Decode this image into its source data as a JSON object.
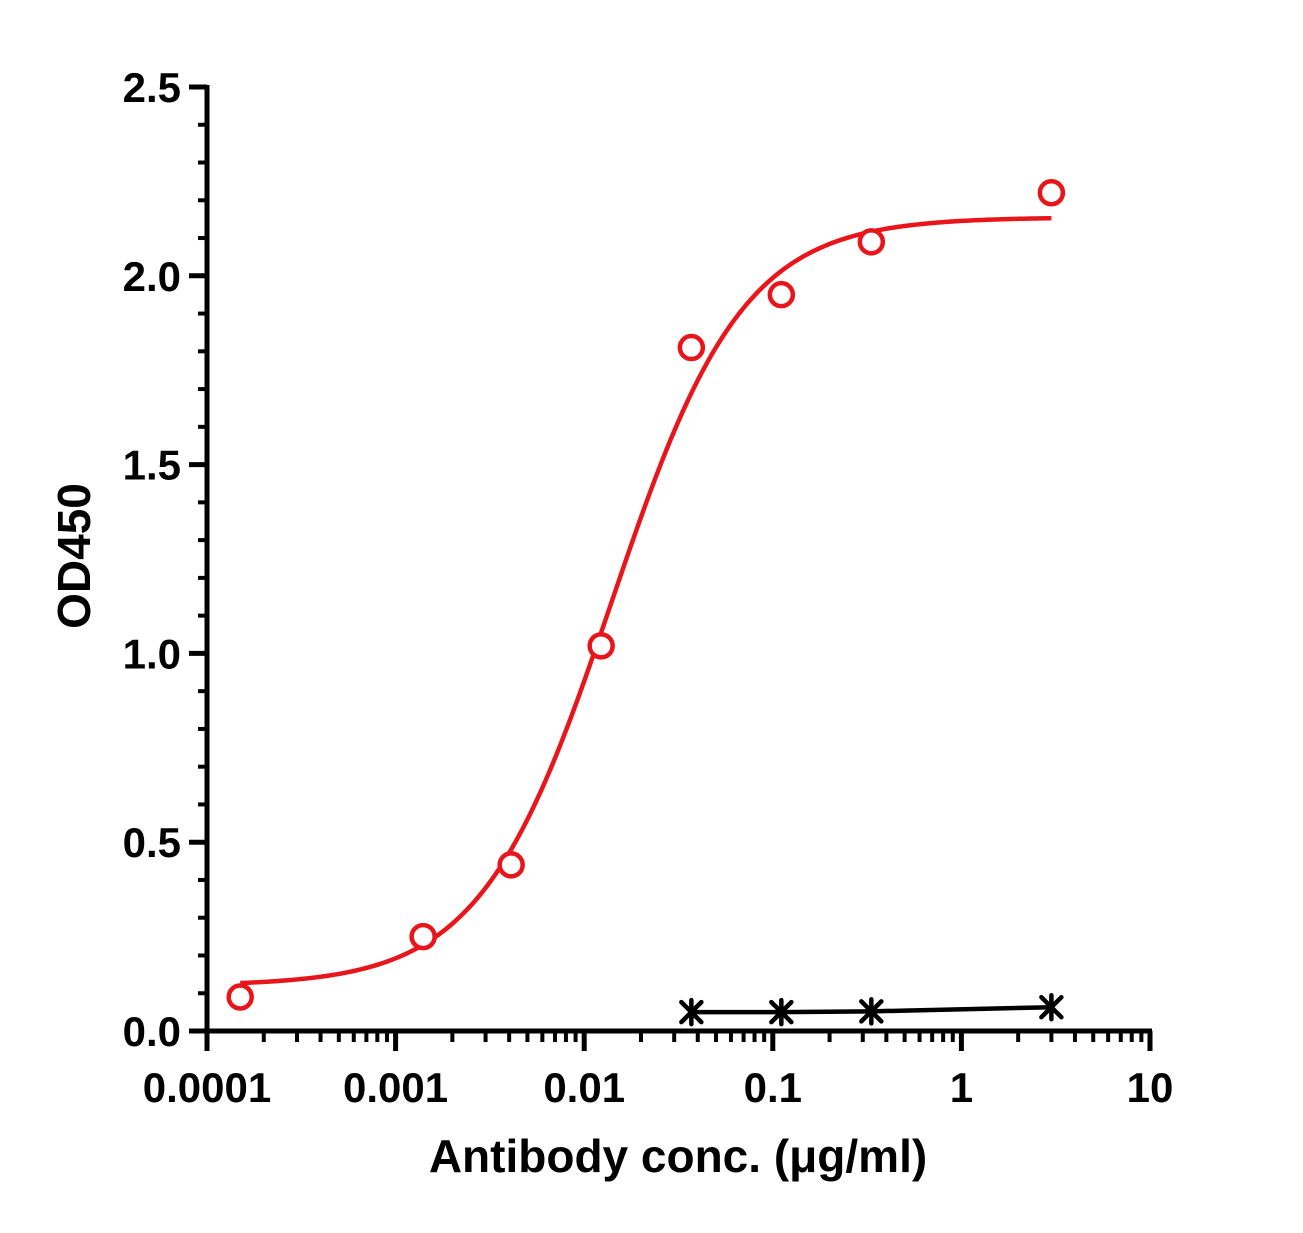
{
  "chart_data": {
    "type": "scatter",
    "title": "",
    "xlabel": "Antibody conc. (μg/ml)",
    "ylabel": "OD450",
    "x_scale": "log",
    "xlim": [
      0.0001,
      10
    ],
    "ylim": [
      0,
      2.5
    ],
    "grid": false,
    "x_tick_values": [
      0.0001,
      0.001,
      0.01,
      0.1,
      1,
      10
    ],
    "x_tick_labels": [
      "0.0001",
      "0.001",
      "0.01",
      "0.1",
      "1",
      "10"
    ],
    "y_tick_values": [
      0,
      0.5,
      1,
      1.5,
      2,
      2.5
    ],
    "y_tick_labels": [
      "0.0",
      "0.5",
      "1.0",
      "1.5",
      "2.0",
      "2.5"
    ],
    "series": [
      {
        "color": "#e8161b",
        "marker": "open-circle",
        "line": "fitted-curve",
        "x": [
          0.00015,
          0.0014,
          0.0041,
          0.0123,
          0.037,
          0.111,
          0.333,
          3.0
        ],
        "y": [
          0.09,
          0.25,
          0.44,
          1.02,
          1.81,
          1.95,
          2.09,
          2.22
        ],
        "fit": {
          "bottom": 0.12,
          "top": 2.155,
          "ec50": 0.014,
          "hill": 1.25
        }
      },
      {
        "color": "#000000",
        "marker": "star",
        "line": "connected",
        "x": [
          0.037,
          0.111,
          0.333,
          3.0
        ],
        "y": [
          0.05,
          0.05,
          0.052,
          0.063
        ]
      }
    ]
  }
}
